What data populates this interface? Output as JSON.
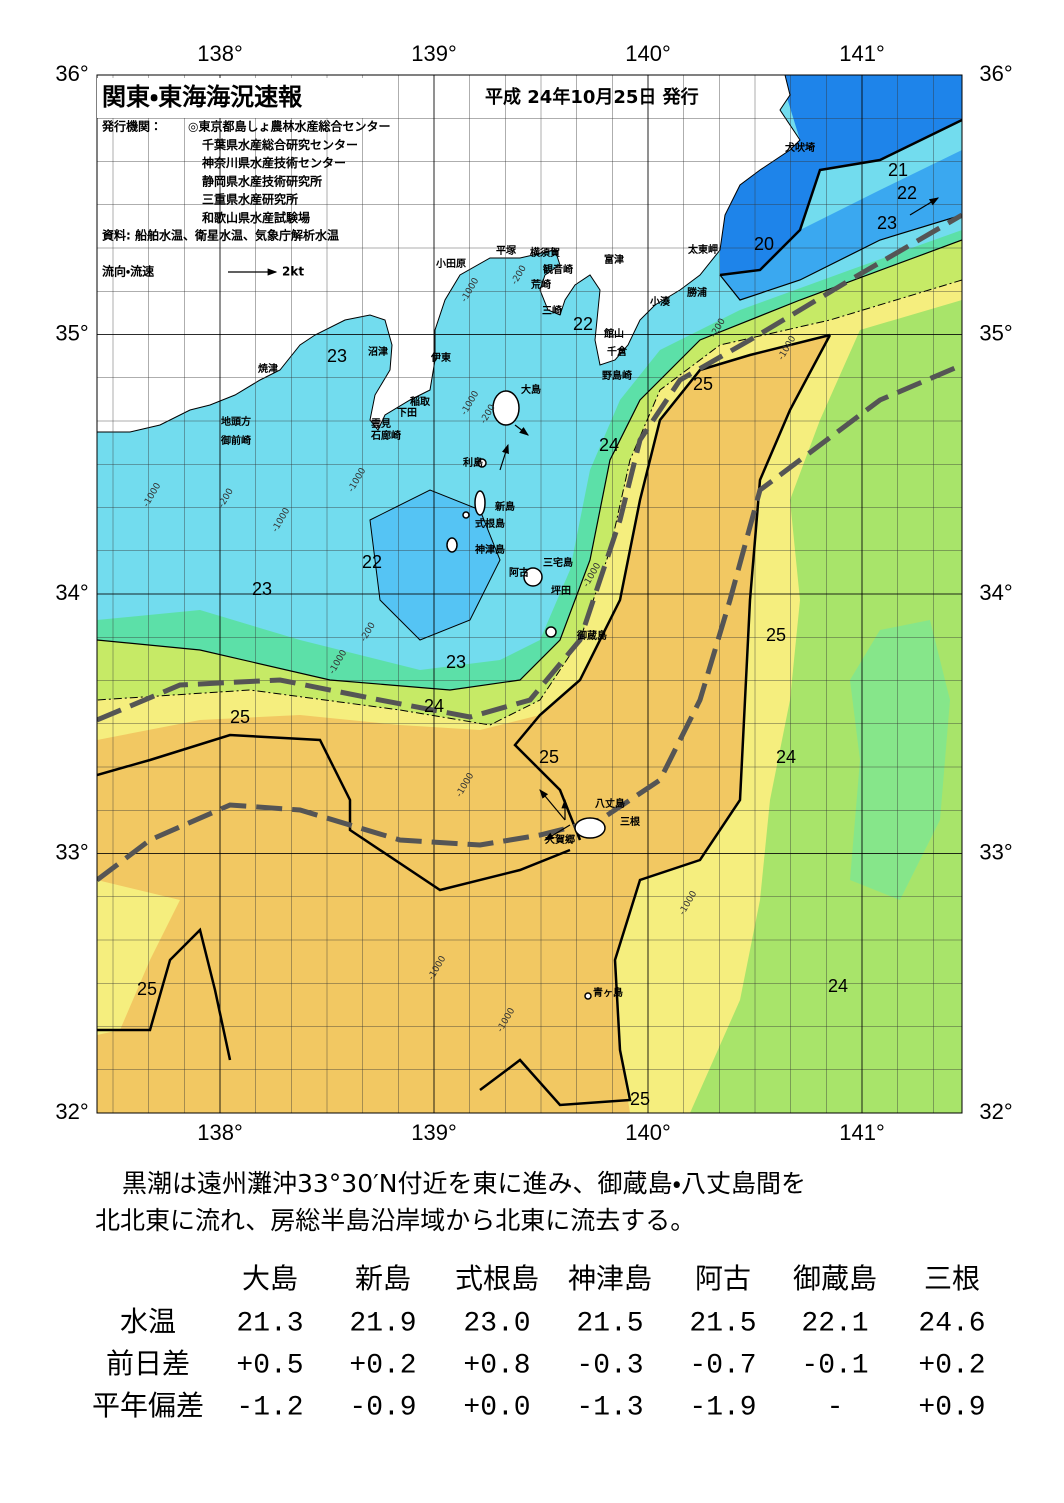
{
  "map": {
    "title": "関東・東海海況速報",
    "issue_date": "平成 24年10月25日 発行",
    "publisher_heading": "発行機関：",
    "publishers": [
      "◎東京都島しょ農林水産総合センター",
      "千葉県水産総合研究センター",
      "神奈川県水産技術センター",
      "静岡県水産技術研究所",
      "三重県水産研究所",
      "和歌山県水産試験場"
    ],
    "sources": "資料: 船舶水温、衛星水温、気象庁解析水温",
    "flow_legend": {
      "label": "流向・流速",
      "scale": "2kt"
    },
    "longitude_ticks": [
      {
        "value": 138,
        "label": "138°"
      },
      {
        "value": 139,
        "label": "139°"
      },
      {
        "value": 140,
        "label": "140°"
      },
      {
        "value": 141,
        "label": "141°"
      }
    ],
    "latitude_ticks": [
      {
        "value": 32,
        "label": "32°"
      },
      {
        "value": 33,
        "label": "33°"
      },
      {
        "value": 34,
        "label": "34°"
      },
      {
        "value": 35,
        "label": "35°"
      },
      {
        "value": 36,
        "label": "36°"
      }
    ],
    "place_names": [
      "犬吠埼",
      "太東岬",
      "勝浦",
      "小湊",
      "富津",
      "観音崎",
      "横須賀",
      "荒崎",
      "三崎",
      "館山",
      "千倉",
      "野島崎",
      "平塚",
      "小田原",
      "沼津",
      "伊東",
      "焼津",
      "稲取",
      "下田",
      "雲見",
      "石廊崎",
      "地頭方",
      "御前崎",
      "大島",
      "利島",
      "新島",
      "式根島",
      "神津島",
      "三宅島",
      "阿古",
      "坪田",
      "御蔵島",
      "八丈島",
      "三根",
      "大賀郷",
      "青ヶ島"
    ],
    "isotherm_labels": [
      "21",
      "22",
      "23",
      "20",
      "22",
      "23",
      "25",
      "24",
      "22",
      "23",
      "25",
      "23",
      "24",
      "25",
      "25",
      "24",
      "25",
      "24",
      "25"
    ],
    "depth_labels": [
      "-200",
      "-200",
      "-200",
      "-200",
      "-200",
      "-1000",
      "-1000",
      "-1000",
      "-1000",
      "-1000",
      "-1000",
      "-1000",
      "-1000",
      "-1000",
      "-1000",
      "-1000",
      "-1000"
    ]
  },
  "summary": [
    "黒潮は遠州灘沖33°30′N付近を東に進み、御蔵島・八丈島間を",
    "北北東に流れ、房総半島沿岸域から北東に流去する。"
  ],
  "table": {
    "header": [
      "大島",
      "新島",
      "式根島",
      "神津島",
      "阿古",
      "御蔵島",
      "三根"
    ],
    "rows": [
      {
        "label": "水温",
        "cells": [
          "21.3",
          "21.9",
          "23.0",
          "21.5",
          "21.5",
          "22.1",
          "24.6"
        ]
      },
      {
        "label": "前日差",
        "cells": [
          "+0.5",
          "+0.2",
          "+0.8",
          "-0.3",
          "-0.7",
          "-0.1",
          "+0.2"
        ]
      },
      {
        "label": "平年偏差",
        "cells": [
          "-1.2",
          "-0.9",
          "+0.0",
          "-1.3",
          "-1.9",
          "-",
          "+0.9"
        ]
      }
    ]
  }
}
